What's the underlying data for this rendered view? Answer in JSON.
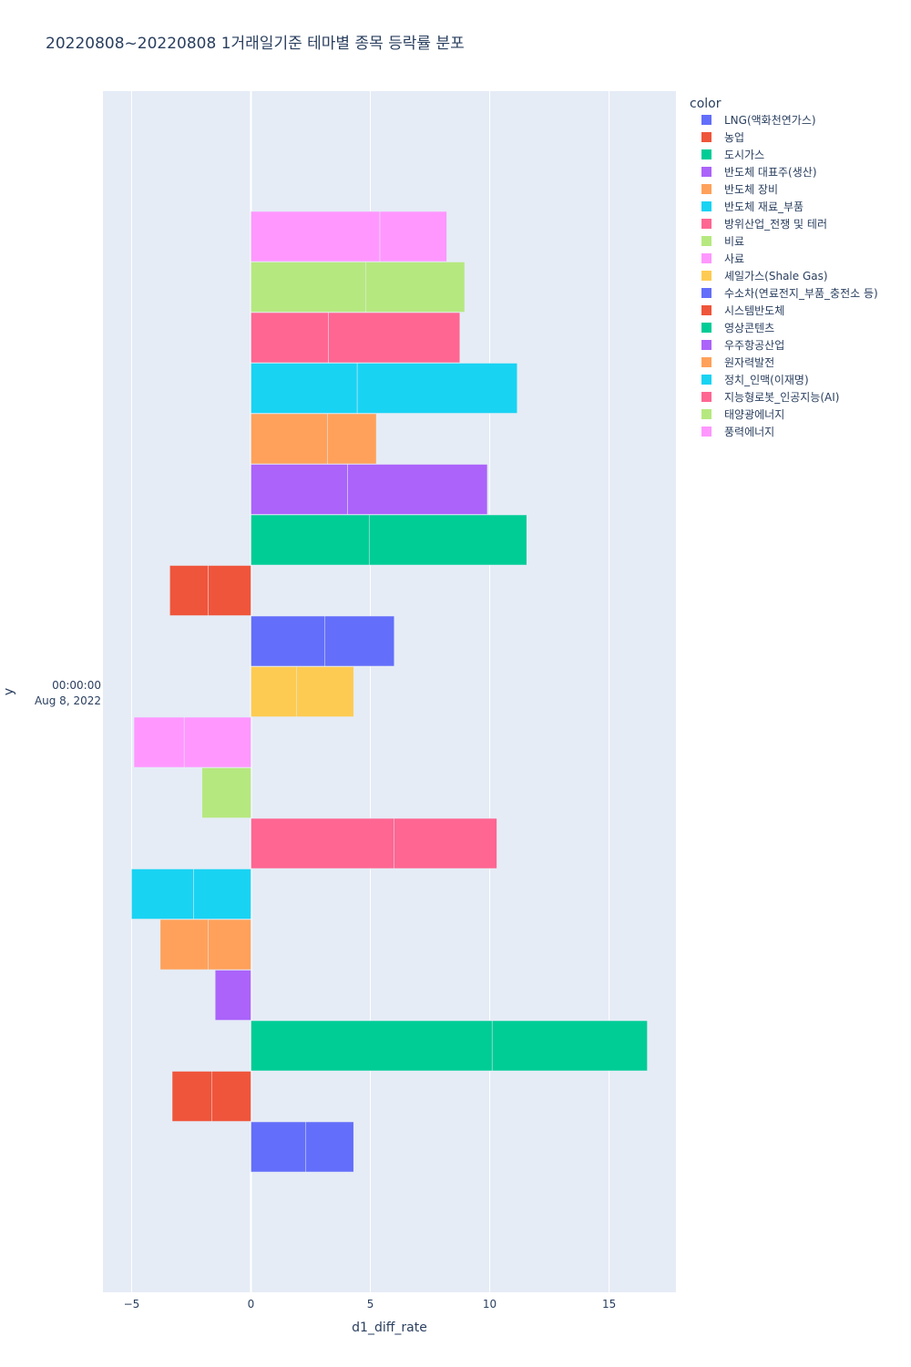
{
  "chart_data": {
    "type": "bar",
    "orientation": "horizontal",
    "barmode": "relative",
    "title": "20220808~20220808 1거래일기준 테마별 종목 등락률 분포",
    "xlabel": "d1_diff_rate",
    "ylabel": "y",
    "xlim": [
      -6.2,
      17.8
    ],
    "x_ticks": [
      -5,
      0,
      5,
      10,
      15
    ],
    "x_tick_labels": [
      "−5",
      "0",
      "5",
      "10",
      "15"
    ],
    "y_tick_label_line1": "00:00:00",
    "y_tick_label_line2": "Aug 8, 2022",
    "grid": true,
    "legend_title": "color",
    "legend_position": "right",
    "series": [
      {
        "name": "LNG(액화천연가스)",
        "color": "#636efa",
        "segments": [
          2.3,
          2.0
        ]
      },
      {
        "name": "농업",
        "color": "#EF553B",
        "segments": [
          -1.65,
          -1.65
        ]
      },
      {
        "name": "도시가스",
        "color": "#00cc96",
        "segments": [
          10.1,
          6.5
        ]
      },
      {
        "name": "반도체 대표주(생산)",
        "color": "#ab63fa",
        "segments": [
          -1.5
        ]
      },
      {
        "name": "반도체 장비",
        "color": "#FFA15A",
        "segments": [
          -1.8,
          -2.0
        ]
      },
      {
        "name": "반도체 재료_부품",
        "color": "#19d3f3",
        "segments": [
          -2.4,
          -2.6
        ]
      },
      {
        "name": "방위산업_전쟁 및 테러",
        "color": "#FF6692",
        "segments": [
          6.0,
          4.3
        ]
      },
      {
        "name": "비료",
        "color": "#B6E880",
        "segments": [
          -2.05
        ]
      },
      {
        "name": "사료",
        "color": "#FF97FF",
        "segments": [
          -2.8,
          -2.1
        ]
      },
      {
        "name": "셰일가스(Shale Gas)",
        "color": "#FECB52",
        "segments": [
          1.9,
          2.4
        ]
      },
      {
        "name": "수소차(연료전지_부품_충전소 등)",
        "color": "#636efa",
        "segments": [
          3.1,
          2.9
        ]
      },
      {
        "name": "시스템반도체",
        "color": "#EF553B",
        "segments": [
          -1.8,
          -1.6
        ]
      },
      {
        "name": "영상콘텐츠",
        "color": "#00cc96",
        "segments": [
          4.95,
          6.6
        ]
      },
      {
        "name": "우주항공산업",
        "color": "#ab63fa",
        "segments": [
          4.05,
          5.85
        ]
      },
      {
        "name": "원자력발전",
        "color": "#FFA15A",
        "segments": [
          3.2,
          2.05
        ]
      },
      {
        "name": "정치_인맥(이재명)",
        "color": "#19d3f3",
        "segments": [
          4.45,
          6.7
        ]
      },
      {
        "name": "지능형로봇_인공지능(AI)",
        "color": "#FF6692",
        "segments": [
          3.25,
          5.5
        ]
      },
      {
        "name": "태양광에너지",
        "color": "#B6E880",
        "segments": [
          4.8,
          4.15
        ]
      },
      {
        "name": "풍력에너지",
        "color": "#FF97FF",
        "segments": [
          5.4,
          2.8
        ]
      }
    ]
  }
}
